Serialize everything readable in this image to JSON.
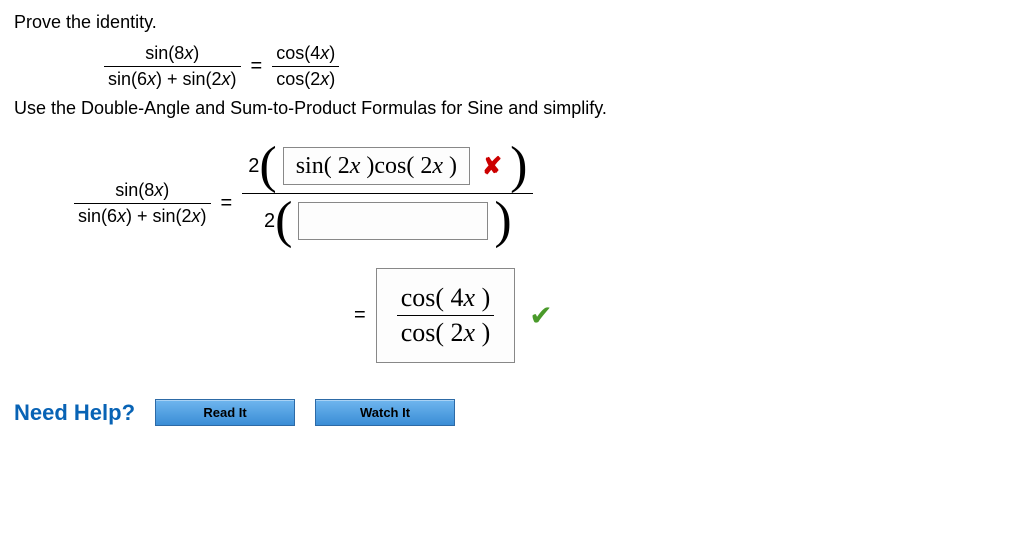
{
  "prompt": "Prove the identity.",
  "identity": {
    "lhs_num": "sin(8x)",
    "lhs_den": "sin(6x) + sin(2x)",
    "rhs_num": "cos(4x)",
    "rhs_den": "cos(2x)"
  },
  "instruction": "Use the Double-Angle and Sum-to-Product Formulas for Sine and simplify.",
  "work": {
    "lhs_num": "sin(8x)",
    "lhs_den": "sin(6x) + sin(2x)",
    "step1_num_entered": "sin( 2x )cos( 2x )",
    "step1_num_correct": false,
    "step1_den_entered": "",
    "coef": "2",
    "final_num": "cos( 4x )",
    "final_den": "cos( 2x )",
    "final_correct": true
  },
  "help": {
    "label": "Need Help?",
    "read": "Read It",
    "watch": "Watch It"
  },
  "colors": {
    "link": "#0863b5",
    "btn_top": "#6fb6ef",
    "btn_bottom": "#3a8dd6",
    "wrong": "#cc0000",
    "right": "#4a9a2a",
    "box_border": "#888888"
  }
}
